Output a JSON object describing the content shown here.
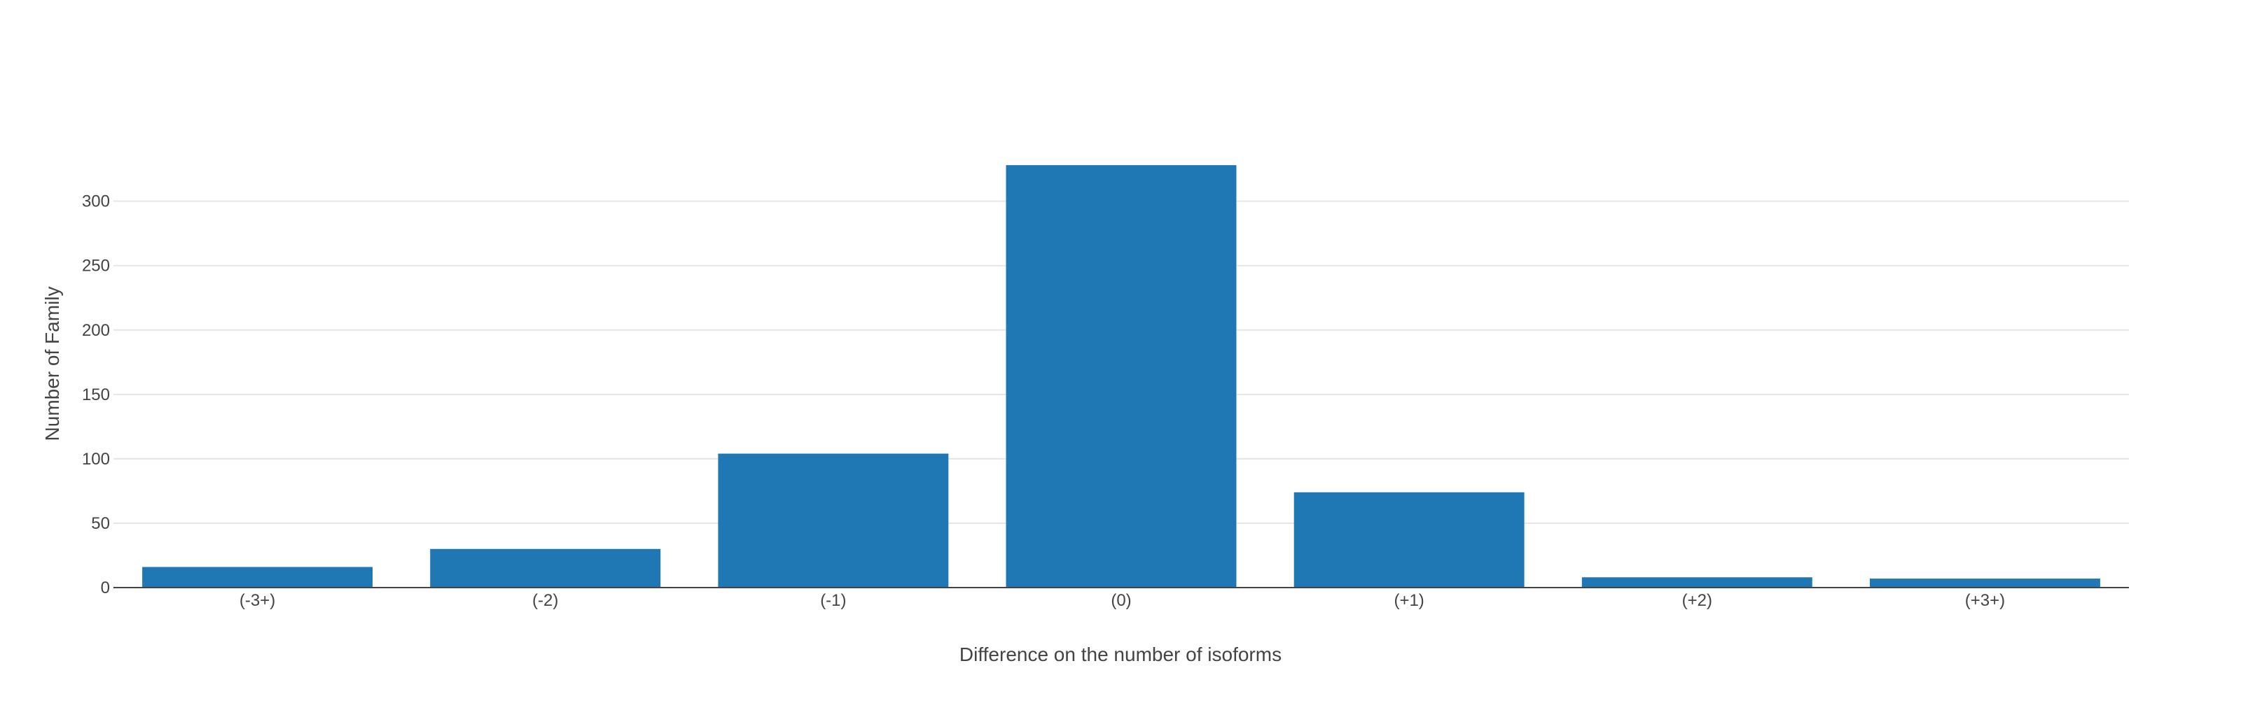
{
  "chart_data": {
    "type": "bar",
    "categories": [
      "(-3+)",
      "(-2)",
      "(-1)",
      "(0)",
      "(+1)",
      "(+2)",
      "(+3+)"
    ],
    "values": [
      16,
      30,
      104,
      328,
      74,
      8,
      7
    ],
    "xlabel": "Difference on the number of isoforms",
    "ylabel": "Number of Family",
    "ylim": [
      0,
      340
    ],
    "yticks": [
      0,
      50,
      100,
      150,
      200,
      250,
      300
    ],
    "grid": true,
    "bar_color": "#1f77b4",
    "grid_color": "#e6e6e6",
    "axis_color": "#444444"
  }
}
